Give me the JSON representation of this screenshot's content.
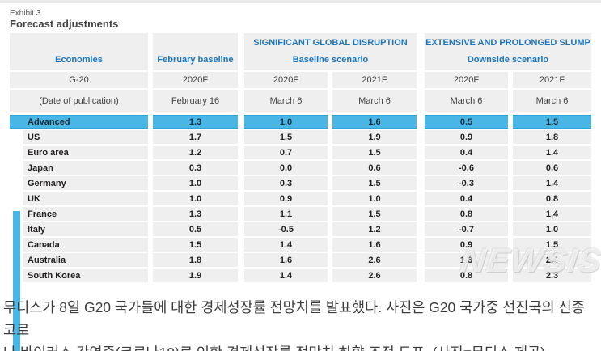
{
  "page": {
    "exhibit_label": "Exhibit 3",
    "title": "Forecast adjustments"
  },
  "table": {
    "header": {
      "economies": "Economies",
      "february_baseline": "February baseline",
      "group1_title": "SIGNIFICANT GLOBAL DISRUPTION",
      "group1_subtitle": "Baseline scenario",
      "group2_title": "EXTENSIVE AND PROLONGED SLUMP",
      "group2_subtitle": "Downside scenario"
    },
    "subheader": [
      "G-20",
      "2020F",
      "2020F",
      "2021F",
      "2020F",
      "2021F"
    ],
    "date_row": [
      "(Date of publication)",
      "February 16",
      "March 6",
      "March 6",
      "March 6",
      "March 6"
    ],
    "advanced_row": {
      "label": "Advanced",
      "values": [
        "1.3",
        "1.0",
        "1.6",
        "0.5",
        "1.5"
      ]
    },
    "rows": [
      {
        "label": "US",
        "values": [
          "1.7",
          "1.5",
          "1.9",
          "0.9",
          "1.8"
        ]
      },
      {
        "label": "Euro area",
        "values": [
          "1.2",
          "0.7",
          "1.5",
          "0.4",
          "1.4"
        ]
      },
      {
        "label": "Japan",
        "values": [
          "0.3",
          "0.0",
          "0.6",
          "-0.6",
          "0.6"
        ]
      },
      {
        "label": "Germany",
        "values": [
          "1.0",
          "0.3",
          "1.5",
          "-0.3",
          "1.4"
        ]
      },
      {
        "label": "UK",
        "values": [
          "1.0",
          "0.9",
          "1.0",
          "0.4",
          "0.8"
        ]
      },
      {
        "label": "France",
        "values": [
          "1.3",
          "1.1",
          "1.5",
          "0.8",
          "1.4"
        ]
      },
      {
        "label": "Italy",
        "values": [
          "0.5",
          "-0.5",
          "1.2",
          "-0.7",
          "1.0"
        ]
      },
      {
        "label": "Canada",
        "values": [
          "1.5",
          "1.4",
          "1.6",
          "0.9",
          "1.5"
        ]
      },
      {
        "label": "Australia",
        "values": [
          "1.8",
          "1.6",
          "2.6",
          "1.3",
          "2.4"
        ]
      },
      {
        "label": "South Korea",
        "values": [
          "1.9",
          "1.4",
          "2.6",
          "0.8",
          "2.3"
        ]
      }
    ]
  },
  "watermark": "NEWSIS",
  "caption": {
    "line1": "무디스가 8일 G20 국가들에 대한 경제성장률 전망치를 발표했다. 사진은 G20 국가중 선진국의 신종 코로",
    "line2": "나 바이러스 감염증(코로나19)로 인한 경제성장률 전망치 하향 조정 도표. (사진=무디스 제공)"
  },
  "colors": {
    "accent_blue": "#49b6e6",
    "header_text_blue": "#1b75bc",
    "cell_bg": "#efeff0",
    "text_dark": "#221f20"
  }
}
